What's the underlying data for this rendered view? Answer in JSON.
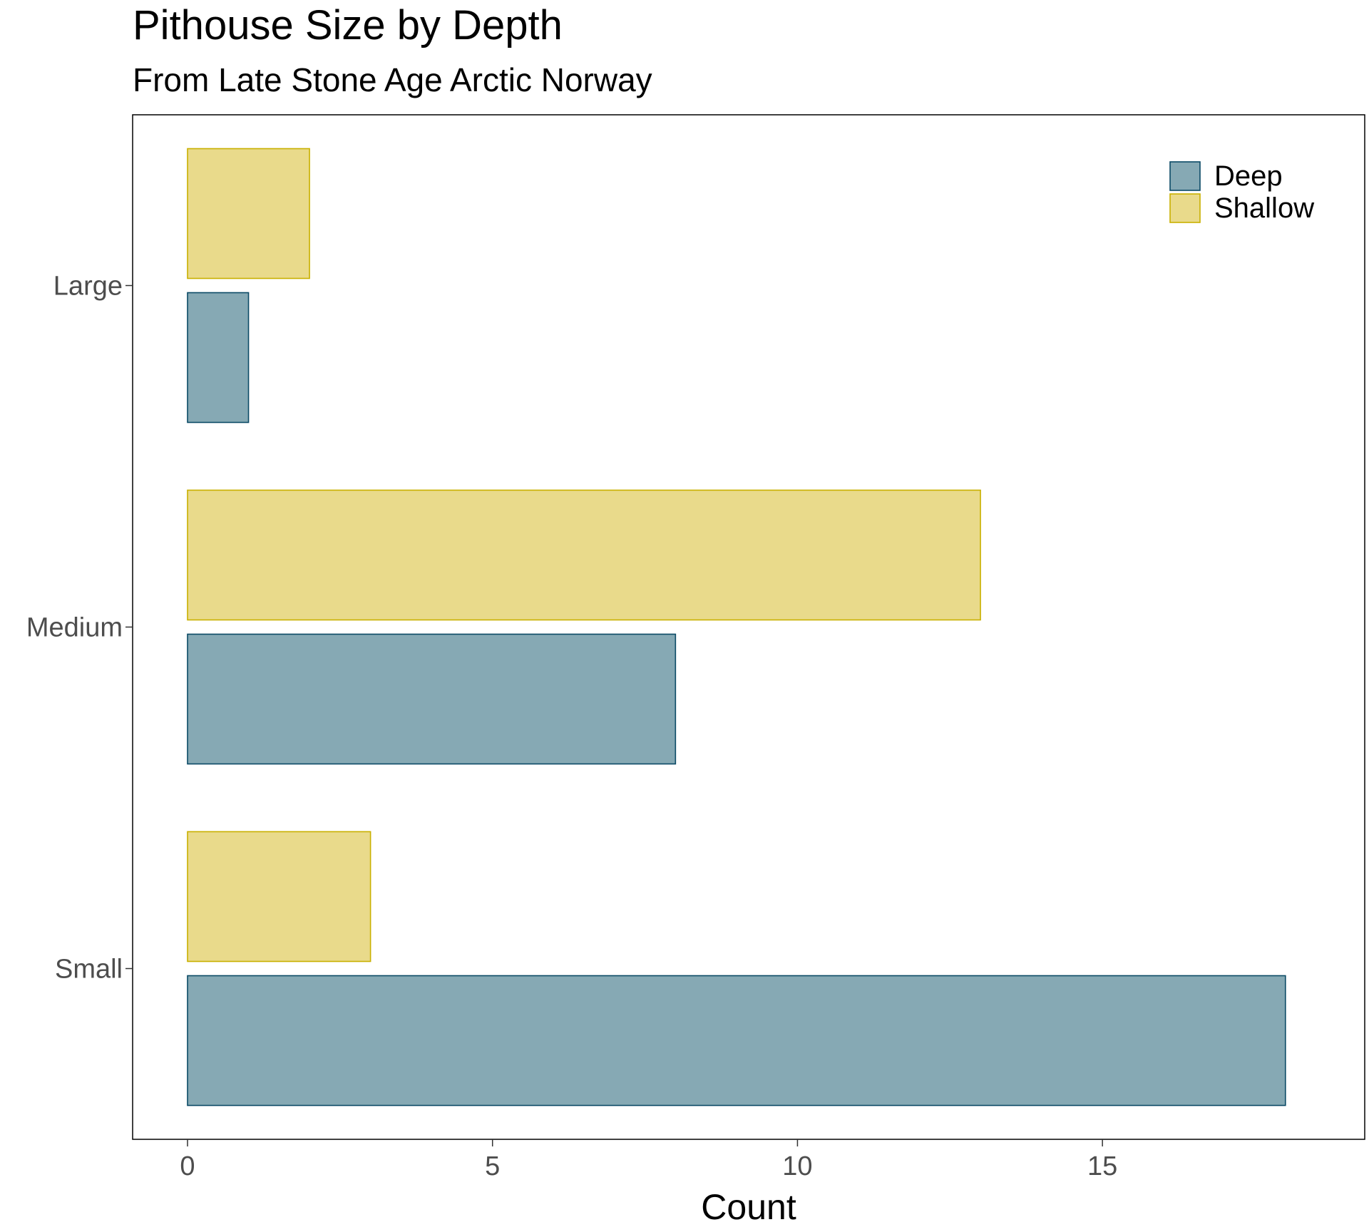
{
  "chart_data": {
    "type": "bar",
    "orientation": "horizontal",
    "title": "Pithouse Size by Depth",
    "subtitle": "From Late Stone Age Arctic Norway",
    "xlabel": "Count",
    "ylabel": "",
    "categories": [
      "Small",
      "Medium",
      "Large"
    ],
    "series": [
      {
        "name": "Deep",
        "values": [
          18,
          8,
          1
        ],
        "fill": "#86a9b4",
        "stroke": "#0b4a66"
      },
      {
        "name": "Shallow",
        "values": [
          3,
          13,
          2
        ],
        "fill": "#e9da8b",
        "stroke": "#c9b000"
      }
    ],
    "xlim": [
      -0.9,
      19.3
    ],
    "xticks": [
      0,
      5,
      10,
      15
    ],
    "xtick_labels": [
      "0",
      "5",
      "10",
      "15"
    ],
    "grid": false,
    "legend_position": "top-right"
  }
}
